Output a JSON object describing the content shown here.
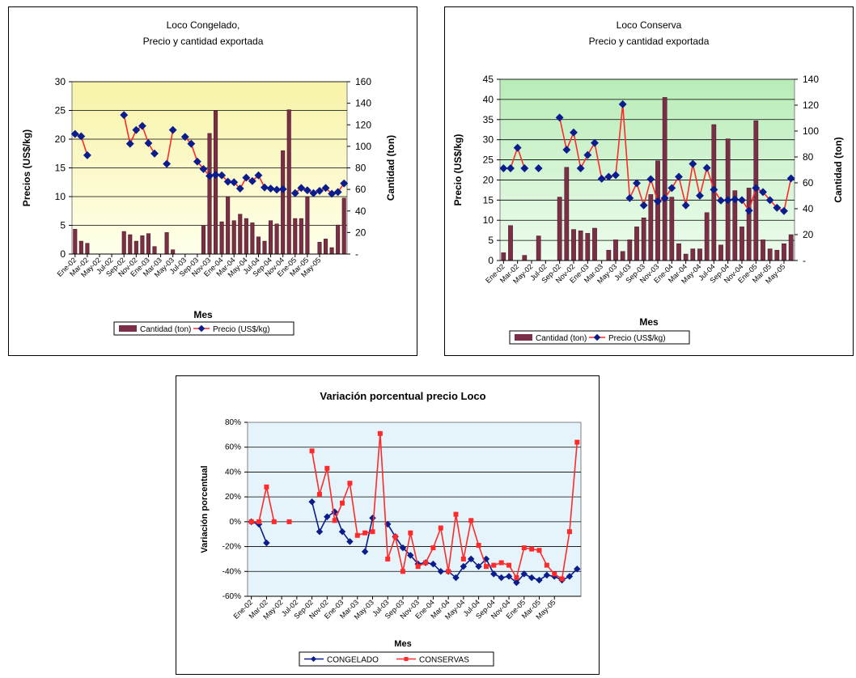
{
  "chart_data": [
    {
      "type": "bar+line",
      "title_lines": [
        "Loco Congelado,",
        "Precio y cantidad exportada"
      ],
      "xlabel": "Mes",
      "ylabel_left": "Precios (US$/kg)",
      "ylabel_right": "Cantidad (ton)",
      "ylim_left": [
        0,
        30
      ],
      "ylim_right": [
        0,
        160
      ],
      "yticks_left": [
        "0",
        "5",
        "10",
        "15",
        "20",
        "25",
        "30"
      ],
      "yticks_right": [
        "-",
        "20",
        "40",
        "60",
        "80",
        "100",
        "120",
        "140",
        "160"
      ],
      "x_tick_labels": [
        "Ene-02",
        "Mar-02",
        "May-02",
        "Jul-02",
        "Sep-02",
        "Nov-02",
        "Ene-03",
        "Mar-03",
        "May-03",
        "Jul-03",
        "Sep-03",
        "Nov-03",
        "Ene-04",
        "Mar-04",
        "May-04",
        "Jul-04",
        "Sep-04",
        "Nov-04",
        "Ene-05",
        "Mar-05",
        "May-05"
      ],
      "legend": [
        "Cantidad (ton)",
        "Precio (US$/kg)"
      ],
      "colors": {
        "bar": "#7b2e45",
        "line": "#ff2a2a",
        "marker": "#0b1d8c",
        "plot_bg_top": "#f7f3a8",
        "plot_bg_bottom": "#ffffea"
      },
      "series": [
        {
          "name": "Cantidad (ton)",
          "kind": "bar",
          "axis": "right",
          "values": [
            23,
            12,
            10,
            null,
            null,
            null,
            null,
            null,
            21,
            18,
            12,
            17,
            19,
            7,
            null,
            20,
            4,
            null,
            null,
            null,
            null,
            26,
            112,
            133,
            30,
            53,
            31,
            37,
            33,
            29,
            16,
            12,
            31,
            28,
            96,
            134,
            33,
            33,
            53,
            null,
            11,
            14,
            6,
            27,
            52
          ]
        },
        {
          "name": "Precio (US$/kg)",
          "kind": "line",
          "axis": "left",
          "values": [
            20.9,
            20.5,
            17.2,
            null,
            null,
            null,
            null,
            null,
            24.2,
            19.2,
            21.6,
            22.3,
            19.3,
            17.5,
            null,
            15.7,
            21.6,
            null,
            20.4,
            19.2,
            16.1,
            14.8,
            13.6,
            13.8,
            13.7,
            12.6,
            12.5,
            11.4,
            13.3,
            12.7,
            13.7,
            11.6,
            11.4,
            11.2,
            11.3,
            null,
            10.6,
            11.5,
            11.1,
            10.6,
            11.0,
            11.5,
            10.5,
            10.8,
            12.3
          ]
        }
      ]
    },
    {
      "type": "bar+line",
      "title_lines": [
        "Loco Conserva",
        "Precio y cantidad exportada"
      ],
      "xlabel": "Mes",
      "ylabel_left": "Precio (US$/kg)",
      "ylabel_right": "Cantidad (ton)",
      "ylim_left": [
        0,
        45
      ],
      "ylim_right": [
        0,
        140
      ],
      "yticks_left": [
        "0",
        "5",
        "10",
        "15",
        "20",
        "25",
        "30",
        "35",
        "40",
        "45"
      ],
      "yticks_right": [
        "-",
        "20",
        "40",
        "60",
        "80",
        "100",
        "120",
        "140"
      ],
      "x_tick_labels": [
        "Ene-02",
        "Mar-02",
        "May-02",
        "Jul-02",
        "Sep-02",
        "Nov-02",
        "Ene-03",
        "Mar-03",
        "May-03",
        "Jul-03",
        "Sep-03",
        "Nov-03",
        "Ene-04",
        "Mar-04",
        "May-04",
        "Jul-04",
        "Sep-04",
        "Nov-04",
        "Ene-05",
        "Mar-05",
        "May-05"
      ],
      "legend": [
        "Cantidad (ton)",
        "Precio (US$/kg)"
      ],
      "colors": {
        "bar": "#7b2e45",
        "line": "#ff2a2a",
        "marker": "#0b1d8c",
        "plot_bg_top": "#b8ecb8",
        "plot_bg_bottom": "#eefcee"
      },
      "series": [
        {
          "name": "Cantidad (ton)",
          "kind": "bar",
          "axis": "right",
          "values": [
            6,
            27,
            null,
            4,
            null,
            19,
            null,
            null,
            49,
            72,
            24,
            23,
            21,
            25,
            null,
            8,
            16,
            7,
            16,
            26,
            33,
            51,
            77,
            126,
            49,
            13,
            5,
            9,
            9,
            37,
            105,
            12,
            94,
            54,
            26,
            56,
            108,
            16,
            9,
            8,
            13,
            20
          ]
        },
        {
          "name": "Precio (US$/kg)",
          "kind": "line",
          "axis": "left",
          "values": [
            22.9,
            22.9,
            28.0,
            22.9,
            null,
            22.9,
            null,
            null,
            35.5,
            27.5,
            31.8,
            22.9,
            26.2,
            29.2,
            20.3,
            20.8,
            21.2,
            38.8,
            15.5,
            19.2,
            13.7,
            20.2,
            14.7,
            15.5,
            18.0,
            20.8,
            13.7,
            24.0,
            16.1,
            23.0,
            17.6,
            14.9,
            15.0,
            15.2,
            15.0,
            12.4,
            18.0,
            17.0,
            15.0,
            13.1,
            12.3,
            20.4
          ]
        }
      ]
    },
    {
      "type": "line",
      "title": "Variación porcentual precio Loco",
      "xlabel": "Mes",
      "ylabel": "Variación porcentual",
      "ylim": [
        -60,
        80
      ],
      "yticks": [
        "-60%",
        "-40%",
        "-20%",
        "0%",
        "20%",
        "40%",
        "60%",
        "80%"
      ],
      "x_tick_labels": [
        "Ene-02",
        "Mar-02",
        "May-02",
        "Jul-02",
        "Sep-02",
        "Nov-02",
        "Ene-03",
        "Mar-03",
        "May-03",
        "Jul-03",
        "Sep-03",
        "Nov-03",
        "Ene-04",
        "Mar-04",
        "May-04",
        "Jul-04",
        "Sep-04",
        "Nov-04",
        "Ene-05",
        "Mar-05",
        "May-05"
      ],
      "legend": [
        "CONGELADO",
        "CONSERVAS"
      ],
      "colors": {
        "CONGELADO": "#0b1d8c",
        "CONSERVAS": "#ff2a2a",
        "plot_bg": "#e4f4fa"
      },
      "series": [
        {
          "name": "CONGELADO",
          "values": [
            0,
            -2,
            -17,
            null,
            null,
            null,
            null,
            null,
            16,
            -8,
            4,
            8,
            -8,
            -16,
            null,
            -24,
            3,
            null,
            -2,
            -12,
            -21,
            -27,
            -34,
            -33,
            -34,
            -40,
            -40,
            -45,
            -36,
            -30,
            -36,
            -30,
            -42,
            -45,
            -44,
            -49,
            -42,
            -45,
            -47,
            -43,
            -44,
            -47,
            -44,
            -38
          ]
        },
        {
          "name": "CONSERVAS",
          "values": [
            0,
            0,
            28,
            0,
            null,
            0,
            null,
            null,
            57,
            22,
            43,
            1,
            15,
            31,
            -11,
            -9,
            -8,
            71,
            -30,
            -12,
            -40,
            -9,
            -36,
            -33,
            -21,
            -5,
            -40,
            6,
            -30,
            1,
            -19,
            -36,
            -35,
            -33,
            -35,
            -45,
            -21,
            -22,
            -23,
            -35,
            -42,
            -46,
            -8,
            64
          ]
        }
      ]
    }
  ]
}
